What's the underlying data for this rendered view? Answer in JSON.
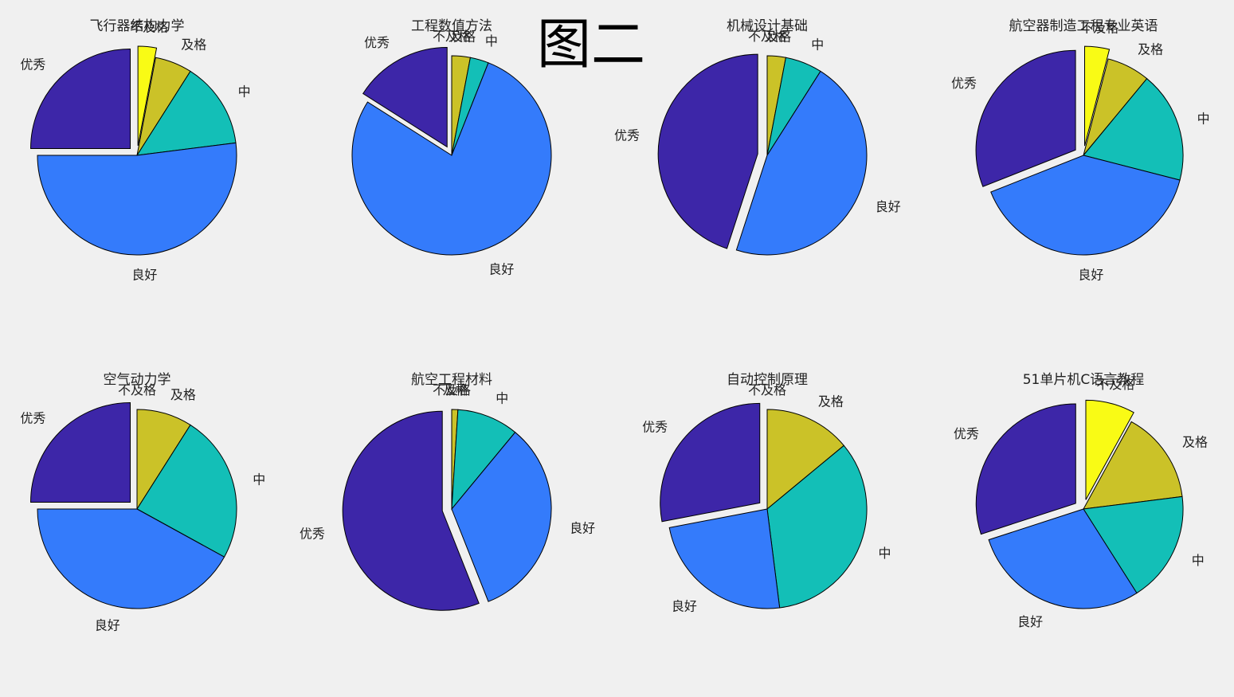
{
  "figure_title": "图二",
  "colors": {
    "background": "#f0f0f0",
    "不及格": "#f9fb15",
    "及格": "#cbc228",
    "中": "#13bfb7",
    "良好": "#347bfb",
    "优秀": "#3d26a8"
  },
  "chart_data": [
    {
      "type": "pie",
      "title": "飞行器结构力学",
      "categories": [
        "不及格",
        "及格",
        "中",
        "良好",
        "优秀"
      ],
      "values": [
        3,
        6,
        14,
        52,
        25
      ],
      "exploded": [
        "不及格",
        "优秀"
      ]
    },
    {
      "type": "pie",
      "title": "工程数值方法",
      "categories": [
        "不及格",
        "及格",
        "中",
        "良好",
        "优秀"
      ],
      "values": [
        0,
        3,
        3,
        78,
        16
      ],
      "exploded": [
        "优秀"
      ]
    },
    {
      "type": "pie",
      "title": "机械设计基础",
      "categories": [
        "不及格",
        "及格",
        "中",
        "良好",
        "优秀"
      ],
      "values": [
        0,
        3,
        6,
        46,
        45
      ],
      "exploded": [
        "优秀"
      ]
    },
    {
      "type": "pie",
      "title": "航空器制造工程专业英语",
      "categories": [
        "不及格",
        "及格",
        "中",
        "良好",
        "优秀"
      ],
      "values": [
        4,
        7,
        18,
        40,
        31
      ],
      "exploded": [
        "不及格",
        "优秀"
      ]
    },
    {
      "type": "pie",
      "title": "空气动力学",
      "categories": [
        "不及格",
        "及格",
        "中",
        "良好",
        "优秀"
      ],
      "values": [
        0,
        9,
        24,
        42,
        25
      ],
      "exploded": [
        "优秀"
      ]
    },
    {
      "type": "pie",
      "title": "航空工程材料",
      "categories": [
        "不及格",
        "及格",
        "中",
        "良好",
        "优秀"
      ],
      "values": [
        0,
        1,
        10,
        33,
        56
      ],
      "exploded": [
        "优秀"
      ]
    },
    {
      "type": "pie",
      "title": "自动控制原理",
      "categories": [
        "不及格",
        "及格",
        "中",
        "良好",
        "优秀"
      ],
      "values": [
        0,
        14,
        34,
        24,
        28
      ],
      "exploded": [
        "优秀"
      ]
    },
    {
      "type": "pie",
      "title": "51单片机C语言教程",
      "categories": [
        "不及格",
        "及格",
        "中",
        "良好",
        "优秀"
      ],
      "values": [
        8,
        15,
        18,
        29,
        30
      ],
      "exploded": [
        "不及格",
        "优秀"
      ]
    }
  ]
}
